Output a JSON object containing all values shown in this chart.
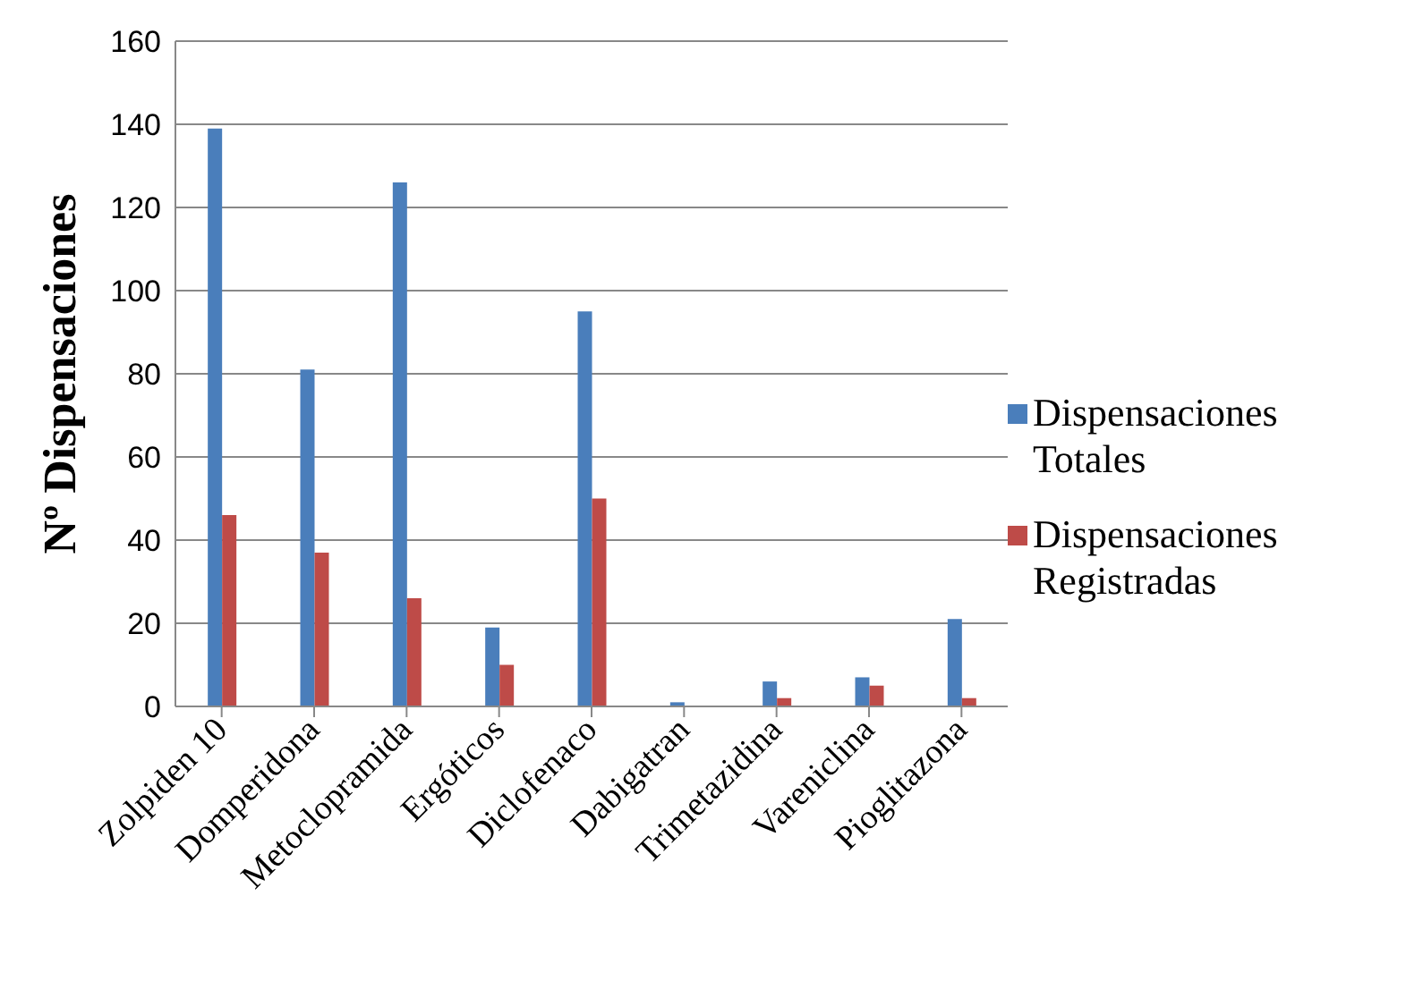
{
  "chart_data": {
    "type": "bar",
    "ylabel": "Nº Dispensaciones",
    "categories": [
      "Zolpiden 10",
      "Domperidona",
      "Metoclopramida",
      "Ergóticos",
      "Diclofenaco",
      "Dabigatran",
      "Trimetazidina",
      "Vareniclina",
      "Pioglitazona"
    ],
    "series": [
      {
        "name": "Dispensaciones Totales",
        "color": "#4a7ebb",
        "values": [
          139,
          81,
          126,
          19,
          95,
          1,
          6,
          7,
          21
        ]
      },
      {
        "name": "Dispensaciones Registradas",
        "color": "#be4b48",
        "values": [
          46,
          37,
          26,
          10,
          50,
          0,
          2,
          5,
          2
        ]
      }
    ],
    "ylim": [
      0,
      160
    ],
    "yticks": [
      0,
      20,
      40,
      60,
      80,
      100,
      120,
      140,
      160
    ],
    "grid": "y",
    "legend": "right"
  }
}
